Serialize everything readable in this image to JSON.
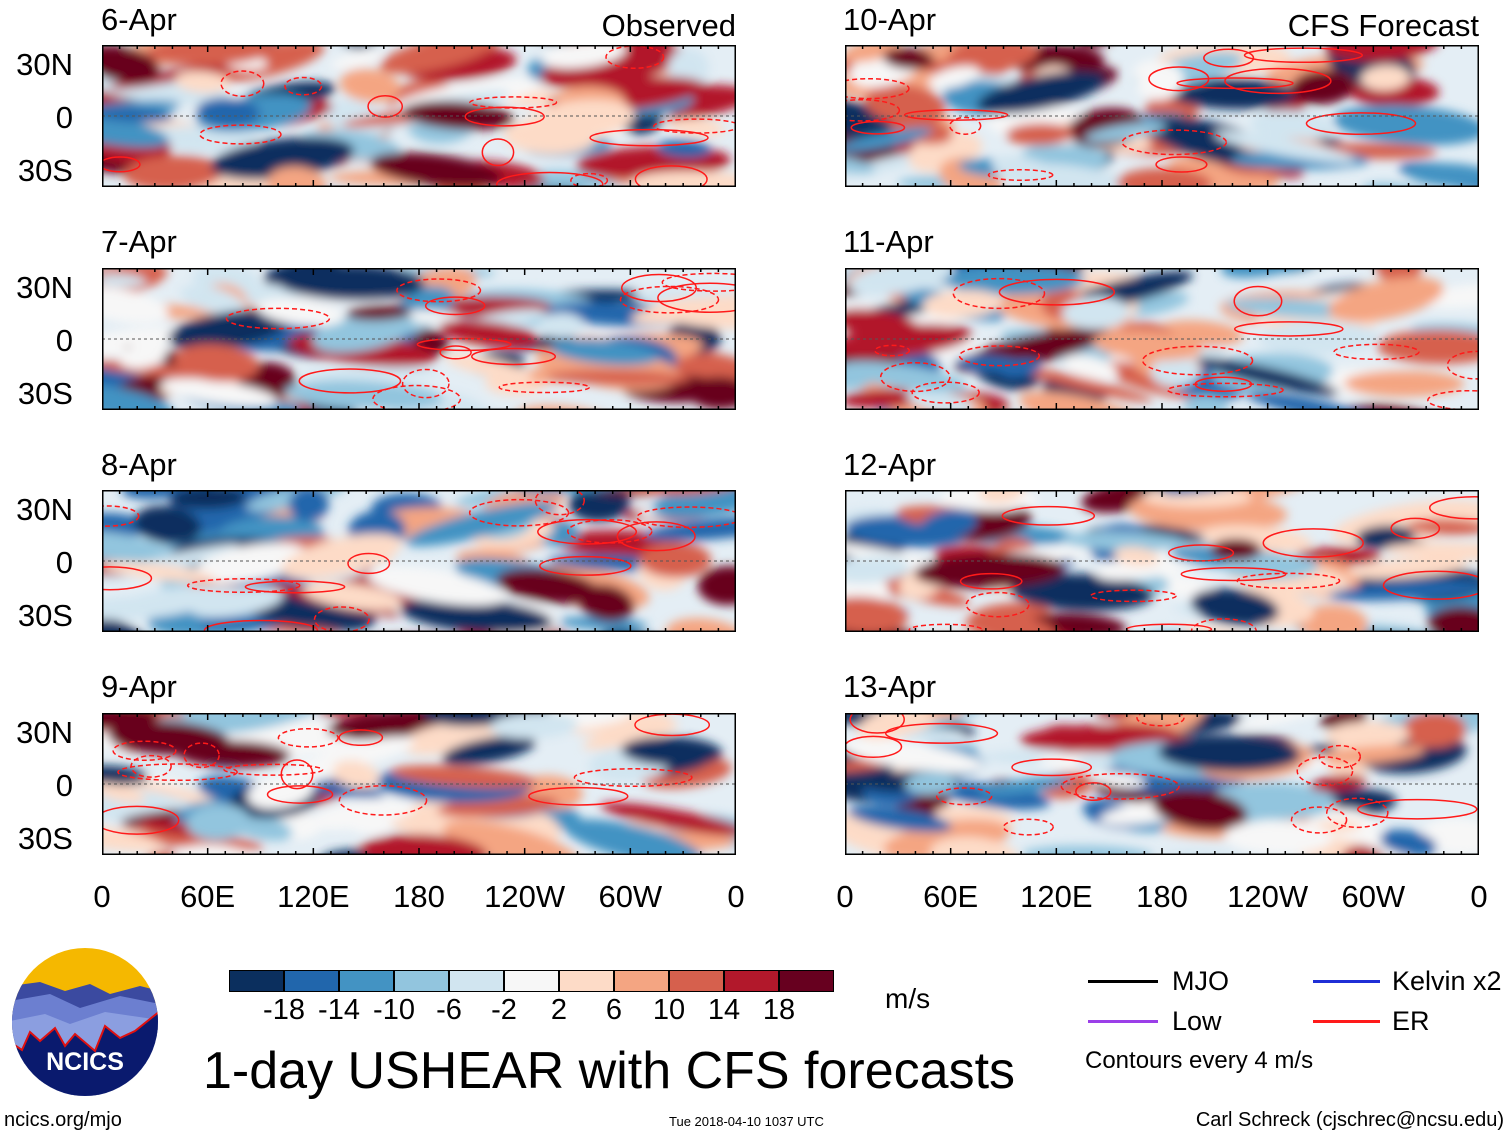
{
  "panels": {
    "observed_label": "Observed",
    "forecast_label": "CFS Forecast",
    "left_dates": [
      "6-Apr",
      "7-Apr",
      "8-Apr",
      "9-Apr"
    ],
    "right_dates": [
      "10-Apr",
      "11-Apr",
      "12-Apr",
      "13-Apr"
    ]
  },
  "axes": {
    "lat_ticks": [
      "30N",
      "0",
      "30S"
    ],
    "lon_ticks": [
      "0",
      "60E",
      "120E",
      "180",
      "120W",
      "60W",
      "0"
    ]
  },
  "colorbar": {
    "labels": [
      "-18",
      "-14",
      "-10",
      "-6",
      "-2",
      "2",
      "6",
      "10",
      "14",
      "18"
    ],
    "colors": [
      "#0b2f5e",
      "#2166ac",
      "#4393c3",
      "#92c5de",
      "#d1e5f0",
      "#f7f7f7",
      "#fddbc7",
      "#f4a582",
      "#d6604d",
      "#b2182b",
      "#67001f"
    ],
    "units": "m/s"
  },
  "legend": {
    "mjo": "MJO",
    "kelvin": "Kelvin x2",
    "low": "Low",
    "er": "ER",
    "contours_note": "Contours every 4 m/s",
    "colors": {
      "mjo": "#000000",
      "kelvin": "#1f2fd6",
      "low": "#9b3fe8",
      "er": "#ff1a1a"
    }
  },
  "title": "1-day USHEAR with CFS forecasts",
  "logo": {
    "text": "NCICS"
  },
  "footer": {
    "url": "ncics.org/mjo",
    "timestamp": "Tue 2018-04-10 1037 UTC",
    "credit": "Carl Schreck (cjschrec@ncsu.edu)"
  },
  "chart_data": {
    "type": "heatmap",
    "title": "1-day USHEAR with CFS forecasts",
    "variable": "USHEAR",
    "units": "m/s",
    "xlabel": "",
    "ylabel": "",
    "xlim": [
      0,
      360
    ],
    "ylim": [
      -40,
      40
    ],
    "x_ticks": [
      "0",
      "60E",
      "120E",
      "180",
      "120W",
      "60W",
      "0"
    ],
    "y_ticks": [
      "30N",
      "0",
      "30S"
    ],
    "levels": [
      -18,
      -14,
      -10,
      -6,
      -2,
      2,
      6,
      10,
      14,
      18
    ],
    "panels": [
      {
        "date": "6-Apr",
        "source": "Observed"
      },
      {
        "date": "7-Apr",
        "source": "Observed"
      },
      {
        "date": "8-Apr",
        "source": "Observed"
      },
      {
        "date": "9-Apr",
        "source": "Observed"
      },
      {
        "date": "10-Apr",
        "source": "CFS Forecast"
      },
      {
        "date": "11-Apr",
        "source": "CFS Forecast"
      },
      {
        "date": "12-Apr",
        "source": "CFS Forecast"
      },
      {
        "date": "13-Apr",
        "source": "CFS Forecast"
      }
    ],
    "contour_legend": [
      "MJO",
      "Kelvin x2",
      "Low",
      "ER"
    ],
    "contour_interval": 4
  }
}
